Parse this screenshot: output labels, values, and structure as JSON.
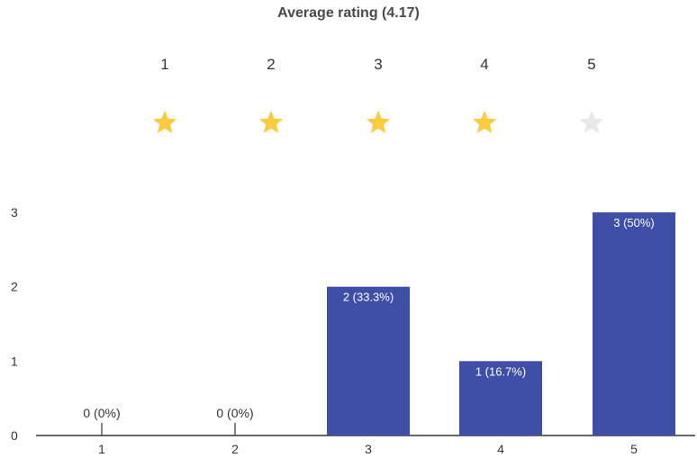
{
  "title": "Average rating (4.17)",
  "rating_scale": {
    "numbers": [
      "1",
      "2",
      "3",
      "4",
      "5"
    ],
    "stars": [
      {
        "icon": "star-icon",
        "filled": true
      },
      {
        "icon": "star-icon",
        "filled": true
      },
      {
        "icon": "star-icon",
        "filled": true
      },
      {
        "icon": "star-icon",
        "filled": true
      },
      {
        "icon": "star-icon",
        "filled": false
      }
    ],
    "filled_color": "#f9cc3f",
    "empty_color": "#e8e8e8"
  },
  "chart_data": {
    "type": "bar",
    "title": "Average rating (4.17)",
    "categories": [
      "1",
      "2",
      "3",
      "4",
      "5"
    ],
    "values": [
      0,
      0,
      2,
      1,
      3
    ],
    "data_labels": [
      "0 (0%)",
      "0 (0%)",
      "2 (33.3%)",
      "1 (16.7%)",
      "3 (50%)"
    ],
    "y_ticks": [
      "0",
      "1",
      "2",
      "3"
    ],
    "ylim": [
      0,
      3
    ],
    "xlabel": "",
    "ylabel": "",
    "grid": false,
    "bar_color": "#3f4fa8"
  }
}
